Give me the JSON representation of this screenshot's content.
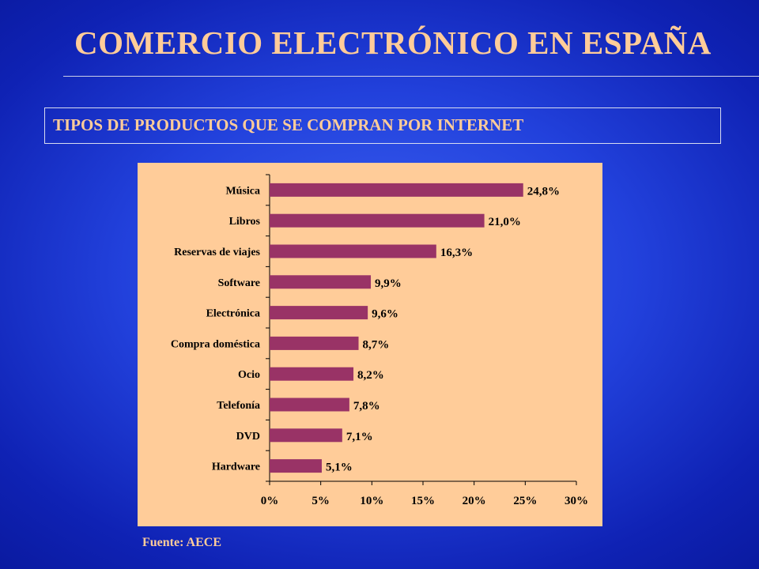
{
  "slide": {
    "title": "COMERCIO ELECTRÓNICO EN ESPAÑA",
    "subtitle": "TIPOS DE PRODUCTOS QUE SE COMPRAN POR INTERNET",
    "source": "Fuente: AECE"
  },
  "colors": {
    "background": "#2241dc",
    "title_text": "#ffcc99",
    "chart_panel": "#ffcc99",
    "bar": "#993366"
  },
  "chart_data": {
    "type": "bar",
    "orientation": "horizontal",
    "categories": [
      "Música",
      "Libros",
      "Reservas de viajes",
      "Software",
      "Electrónica",
      "Compra doméstica",
      "Ocio",
      "Telefonía",
      "DVD",
      "Hardware"
    ],
    "values": [
      24.8,
      21.0,
      16.3,
      9.9,
      9.6,
      8.7,
      8.2,
      7.8,
      7.1,
      5.1
    ],
    "data_labels": [
      "24,8%",
      "21,0%",
      "16,3%",
      "9,9%",
      "9,6%",
      "8,7%",
      "8,2%",
      "7,8%",
      "7,1%",
      "5,1%"
    ],
    "x_ticks": [
      0,
      5,
      10,
      15,
      20,
      25,
      30
    ],
    "x_tick_labels": [
      "0%",
      "5%",
      "10%",
      "15%",
      "20%",
      "25%",
      "30%"
    ],
    "xlim": [
      0,
      30
    ],
    "grid": false,
    "legend": "none"
  }
}
